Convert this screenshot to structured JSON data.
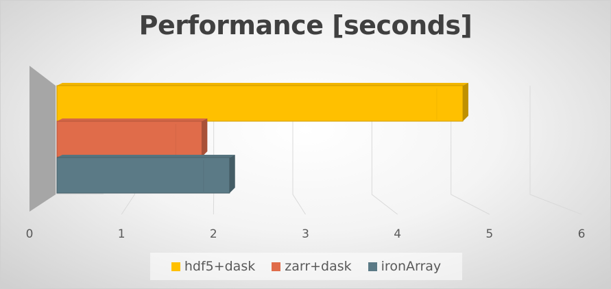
{
  "chart_data": {
    "type": "bar",
    "orientation": "horizontal",
    "title": "Performance [seconds]",
    "categories": [
      ""
    ],
    "xlim": [
      0,
      6
    ],
    "x_ticks": [
      "0",
      "1",
      "2",
      "3",
      "4",
      "5",
      "6"
    ],
    "grid": true,
    "legend_position": "bottom",
    "series": [
      {
        "name": "hdf5+dask",
        "values": [
          5.15
        ],
        "color": "#FFC000"
      },
      {
        "name": "zarr+dask",
        "values": [
          1.85
        ],
        "color": "#E06C4A"
      },
      {
        "name": "ironArray",
        "values": [
          2.2
        ],
        "color": "#5B7A86"
      }
    ]
  }
}
